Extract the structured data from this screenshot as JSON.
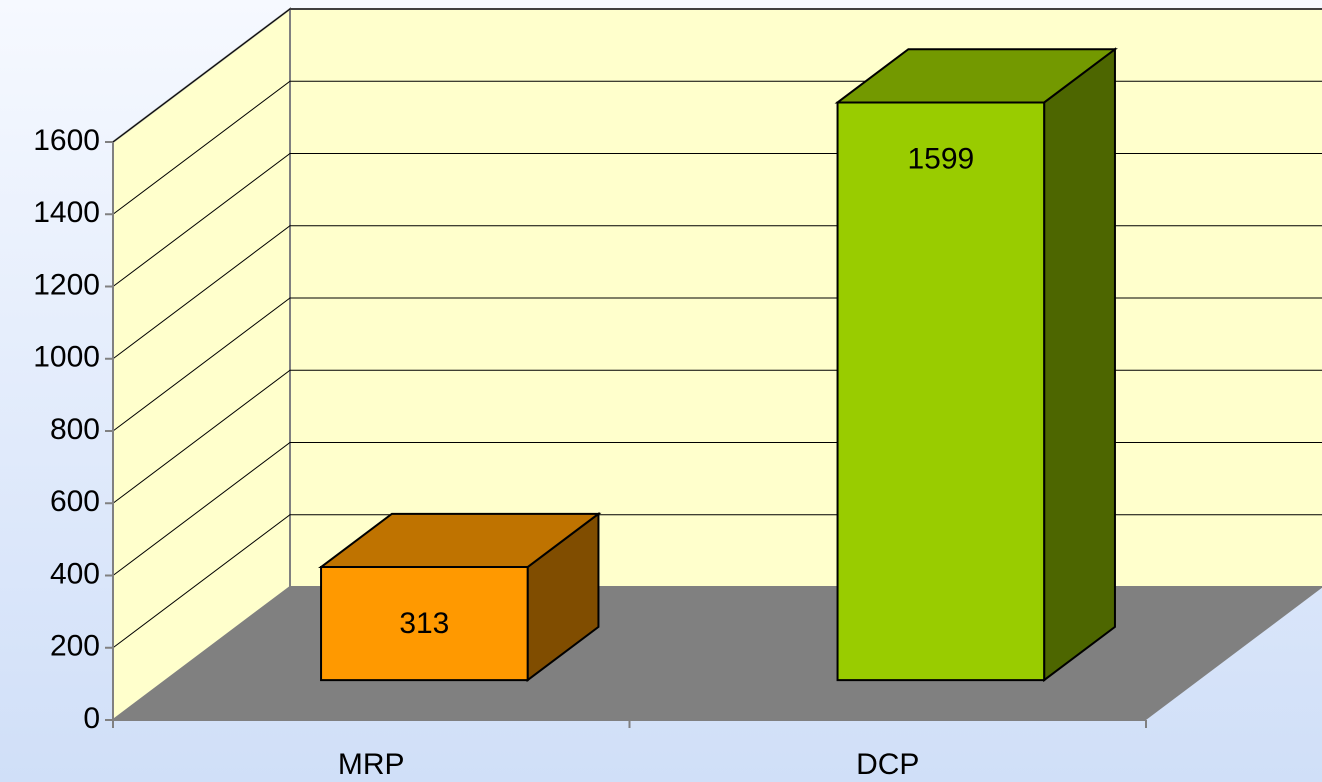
{
  "chart_data": {
    "type": "bar3d",
    "categories": [
      "MRP",
      "DCP"
    ],
    "values": [
      313,
      1599
    ],
    "colors": [
      "#FF9900",
      "#99CC00"
    ],
    "ylim": [
      0,
      1600
    ],
    "yticks": [
      0,
      200,
      400,
      600,
      800,
      1000,
      1200,
      1400,
      1600
    ],
    "grid": true
  }
}
